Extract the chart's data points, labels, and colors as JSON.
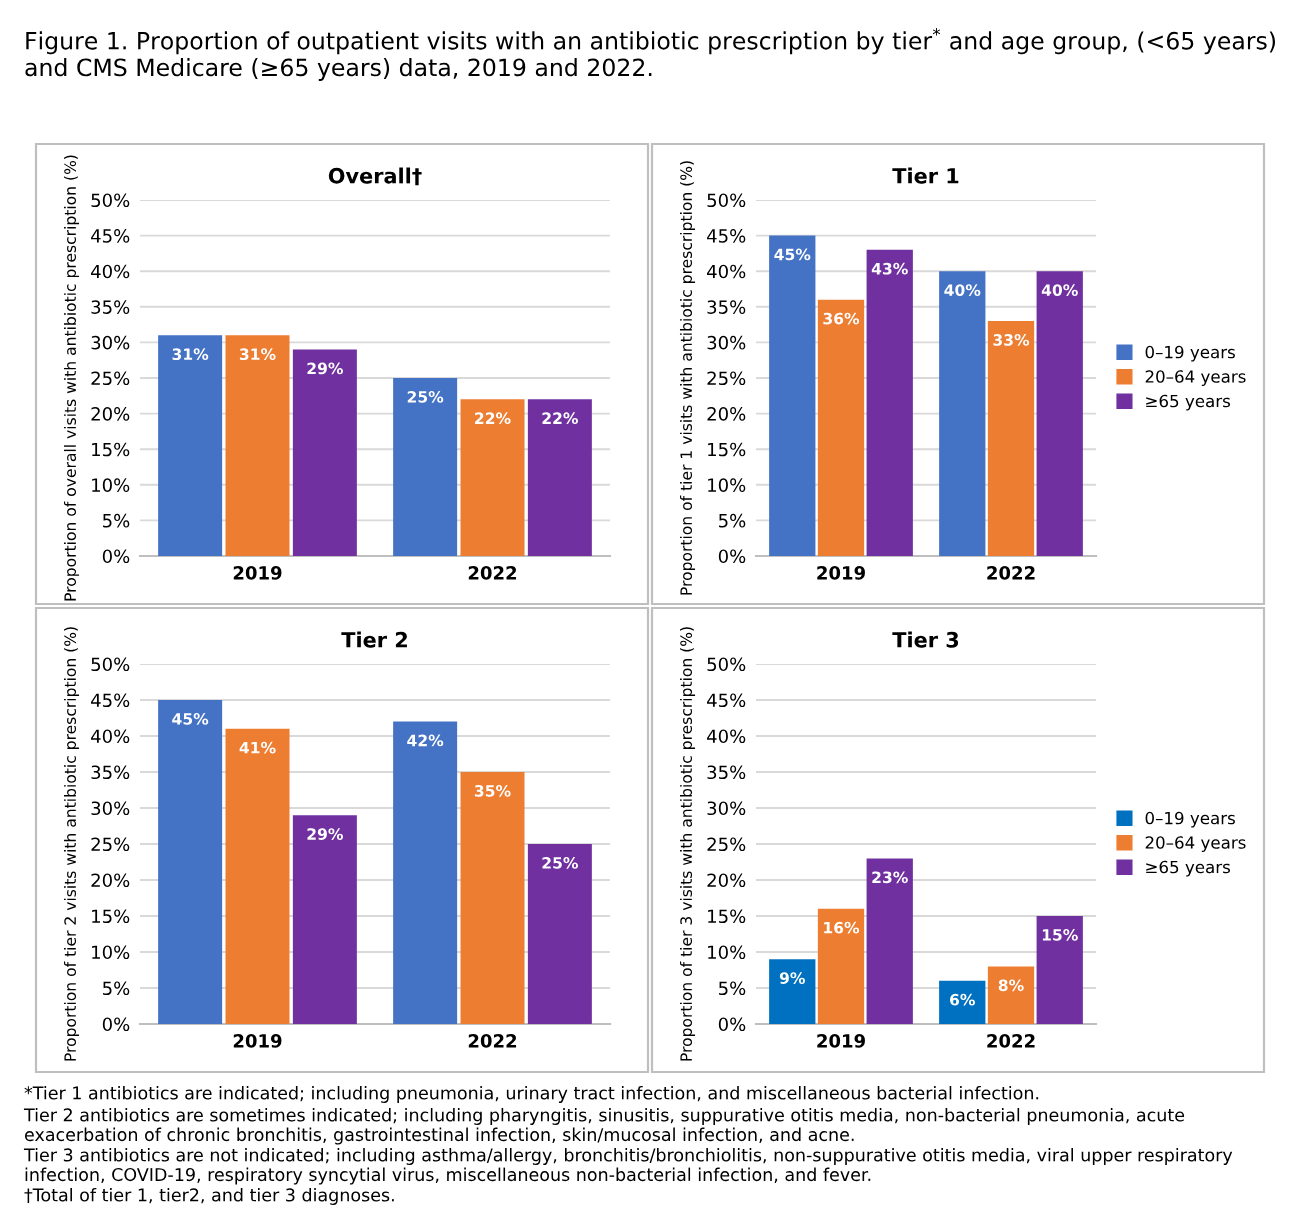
{
  "chart_data": [
    {
      "type": "bar",
      "title": "Overall†",
      "ylabel": "Proportion of overall visits with antibiotic prescription (%)",
      "categories": [
        "2019",
        "2022"
      ],
      "ylim": [
        0,
        50
      ],
      "yticks": [
        {
          "value": 0,
          "label": "0%"
        },
        {
          "value": 5,
          "label": "5%"
        },
        {
          "value": 10,
          "label": "10%"
        },
        {
          "value": 15,
          "label": "15%"
        },
        {
          "value": 20,
          "label": "20%"
        },
        {
          "value": 25,
          "label": "25%"
        },
        {
          "value": 30,
          "label": "30%"
        },
        {
          "value": 35,
          "label": "35%"
        },
        {
          "value": 40,
          "label": "40%"
        },
        {
          "value": 45,
          "label": "45%"
        },
        {
          "value": 50,
          "label": "50%"
        }
      ],
      "grid": "y",
      "legend": false,
      "annotations": [
        "Figure 1. Proportion of outpatient visits with an antibiotic prescription by tier$^{*}$ and age group, (<65 years) and CMS Medicare (≥65 years) data, 2019 and 2022."
      ],
      "series": [
        {
          "color": "#4472c4",
          "values": [
            31,
            25
          ],
          "value_labels": [
            "31%",
            "25%"
          ]
        },
        {
          "color": "#ed7d31",
          "values": [
            31,
            22
          ],
          "value_labels": [
            "31%",
            "22%"
          ]
        },
        {
          "color": "#7030a0",
          "values": [
            29,
            22
          ],
          "value_labels": [
            "29%",
            "22%"
          ]
        }
      ]
    },
    {
      "type": "bar",
      "title": "Tier 1",
      "ylabel": "Proportion of tier 1 visits with antibiotic prescription (%)",
      "categories": [
        "2019",
        "2022"
      ],
      "ylim": [
        0,
        50
      ],
      "yticks": [
        {
          "value": 0,
          "label": "0%"
        },
        {
          "value": 5,
          "label": "5%"
        },
        {
          "value": 10,
          "label": "10%"
        },
        {
          "value": 15,
          "label": "15%"
        },
        {
          "value": 20,
          "label": "20%"
        },
        {
          "value": 25,
          "label": "25%"
        },
        {
          "value": 30,
          "label": "30%"
        },
        {
          "value": 35,
          "label": "35%"
        },
        {
          "value": 40,
          "label": "40%"
        },
        {
          "value": 45,
          "label": "45%"
        },
        {
          "value": 50,
          "label": "50%"
        }
      ],
      "grid": "y",
      "legend": "right",
      "series": [
        {
          "name": "0–19 years",
          "color": "#4472c4",
          "values": [
            45,
            40
          ],
          "value_labels": [
            "45%",
            "40%"
          ]
        },
        {
          "name": "20–64 years",
          "color": "#ed7d31",
          "values": [
            36,
            33
          ],
          "value_labels": [
            "36%",
            "33%"
          ]
        },
        {
          "name": "≥65 years",
          "color": "#7030a0",
          "values": [
            43,
            40
          ],
          "value_labels": [
            "43%",
            "40%"
          ]
        }
      ]
    },
    {
      "type": "bar",
      "title": "Tier 2",
      "ylabel": "Proportion of tier 2 visits with antibiotic prescription (%)",
      "categories": [
        "2019",
        "2022"
      ],
      "ylim": [
        0,
        50
      ],
      "yticks": [
        {
          "value": 0,
          "label": "0%"
        },
        {
          "value": 5,
          "label": "5%"
        },
        {
          "value": 10,
          "label": "10%"
        },
        {
          "value": 15,
          "label": "15%"
        },
        {
          "value": 20,
          "label": "20%"
        },
        {
          "value": 25,
          "label": "25%"
        },
        {
          "value": 30,
          "label": "30%"
        },
        {
          "value": 35,
          "label": "35%"
        },
        {
          "value": 40,
          "label": "40%"
        },
        {
          "value": 45,
          "label": "45%"
        },
        {
          "value": 50,
          "label": "50%"
        }
      ],
      "grid": "y",
      "legend": false,
      "series": [
        {
          "color": "#4472c4",
          "values": [
            45,
            42
          ],
          "value_labels": [
            "45%",
            "42%"
          ]
        },
        {
          "color": "#ed7d31",
          "values": [
            41,
            35
          ],
          "value_labels": [
            "41%",
            "35%"
          ]
        },
        {
          "color": "#7030a0",
          "values": [
            29,
            25
          ],
          "value_labels": [
            "29%",
            "25%"
          ]
        }
      ]
    },
    {
      "type": "bar",
      "title": "Tier 3",
      "ylabel": "Proportion of tier 3 visits with antibiotic prescription (%)",
      "categories": [
        "2019",
        "2022"
      ],
      "ylim": [
        0,
        50
      ],
      "yticks": [
        {
          "value": 0,
          "label": "0%"
        },
        {
          "value": 5,
          "label": "5%"
        },
        {
          "value": 10,
          "label": "10%"
        },
        {
          "value": 15,
          "label": "15%"
        },
        {
          "value": 20,
          "label": "20%"
        },
        {
          "value": 25,
          "label": "25%"
        },
        {
          "value": 30,
          "label": "30%"
        },
        {
          "value": 35,
          "label": "35%"
        },
        {
          "value": 40,
          "label": "40%"
        },
        {
          "value": 45,
          "label": "45%"
        },
        {
          "value": 50,
          "label": "50%"
        }
      ],
      "grid": "y",
      "legend": "right",
      "annotations": [
        "*Tier 1 antibiotics are indicated; including pneumonia, urinary tract infection, and miscellaneous bacterial infection.",
        "Tier 2 antibiotics are sometimes indicated; including pharyngitis, sinusitis, suppurative otitis media, non-bacterial pneumonia, acute exacerbation of chronic bronchitis, gastrointestinal infection, skin/mucosal infection, and acne.",
        "Tier 3 antibiotics are not indicated; including asthma/allergy, bronchitis/bronchiolitis, non-suppurative otitis media, viral upper respiratory infection, COVID-19, respiratory syncytial virus, miscellaneous non-bacterial infection, and fever.",
        "†Total of tier 1, tier2, and tier 3 diagnoses."
      ],
      "series": [
        {
          "name": "0–19 years",
          "color": "#0070c0",
          "values": [
            9,
            6
          ],
          "value_labels": [
            "9%",
            "6%"
          ]
        },
        {
          "name": "20–64 years",
          "color": "#ed7d31",
          "values": [
            16,
            8
          ],
          "value_labels": [
            "16%",
            "8%"
          ]
        },
        {
          "name": "≥65 years",
          "color": "#7030a0",
          "values": [
            23,
            15
          ],
          "value_labels": [
            "23%",
            "15%"
          ]
        }
      ]
    }
  ]
}
